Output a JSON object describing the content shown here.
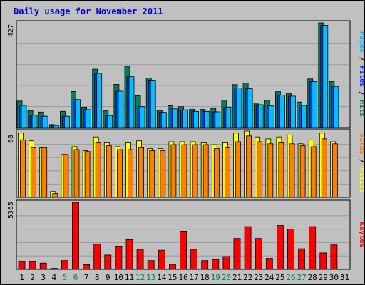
{
  "chart_data": [
    {
      "type": "bar",
      "title": "Daily usage for November 2011",
      "panel": "hits-files-pages",
      "ymax_label": "427",
      "right_label_parts": [
        {
          "text": "Pages",
          "color": "#00c0ff"
        },
        {
          "text": " / ",
          "color": "#000000"
        },
        {
          "text": "Files",
          "color": "#0040ff"
        },
        {
          "text": " / ",
          "color": "#000000"
        },
        {
          "text": "Hits",
          "color": "#00805c"
        }
      ],
      "categories": [
        "1",
        "2",
        "3",
        "4",
        "5",
        "6",
        "7",
        "8",
        "9",
        "10",
        "11",
        "12",
        "13",
        "14",
        "15",
        "16",
        "17",
        "18",
        "19",
        "20",
        "21",
        "22",
        "23",
        "24",
        "25",
        "26",
        "27",
        "28",
        "29",
        "30",
        "31"
      ],
      "weekend_days": [
        "5",
        "6",
        "12",
        "13",
        "19",
        "20",
        "26",
        "27"
      ],
      "ylim": [
        0,
        427
      ],
      "series": [
        {
          "name": "Hits",
          "color": "#00805c",
          "values": [
            108,
            69,
            63,
            12,
            66,
            147,
            83,
            238,
            68,
            176,
            250,
            130,
            202,
            69,
            89,
            85,
            74,
            74,
            78,
            111,
            175,
            181,
            100,
            111,
            146,
            138,
            104,
            198,
            427,
            188,
            0
          ]
        },
        {
          "name": "Files",
          "color": "#0040ff",
          "values": [
            90,
            50,
            46,
            8,
            46,
            114,
            73,
            221,
            49,
            148,
            207,
            85,
            193,
            62,
            76,
            72,
            66,
            66,
            64,
            83,
            161,
            158,
            93,
            88,
            132,
            128,
            90,
            187,
            417,
            168,
            0
          ]
        },
        {
          "name": "Pages",
          "color": "#00c0ff",
          "values": [
            90,
            50,
            46,
            8,
            46,
            114,
            73,
            221,
            49,
            148,
            207,
            85,
            193,
            62,
            76,
            72,
            66,
            66,
            64,
            83,
            161,
            158,
            93,
            88,
            132,
            128,
            90,
            187,
            417,
            168,
            0
          ]
        }
      ]
    },
    {
      "type": "bar",
      "panel": "visits-sites",
      "ymax_label": "68",
      "right_label_parts": [
        {
          "text": "Sites",
          "color": "#ff8000"
        },
        {
          "text": " / ",
          "color": "#000000"
        },
        {
          "text": "Visits",
          "color": "#ffff00"
        }
      ],
      "ylim": [
        0,
        68
      ],
      "series": [
        {
          "name": "Visits",
          "color": "#ffff00",
          "values": [
            66,
            58,
            51,
            6,
            44,
            52,
            48,
            62,
            56,
            52,
            56,
            58,
            50,
            50,
            57,
            57,
            57,
            56,
            54,
            56,
            66,
            68,
            62,
            60,
            62,
            64,
            55,
            59,
            66,
            57,
            0
          ]
        },
        {
          "name": "Sites",
          "color": "#ff8000",
          "values": [
            59,
            51,
            51,
            4,
            44,
            49,
            47,
            56,
            53,
            49,
            49,
            51,
            48,
            48,
            54,
            54,
            54,
            54,
            50,
            51,
            57,
            63,
            57,
            55,
            56,
            55,
            53,
            52,
            60,
            55,
            0
          ]
        }
      ]
    },
    {
      "type": "bar",
      "panel": "kbytes",
      "ymax_label": "5365",
      "right_label_parts": [
        {
          "text": "KBytes",
          "color": "#ff0000"
        }
      ],
      "ylim": [
        0,
        5365
      ],
      "series": [
        {
          "name": "KBytes",
          "color": "#ff0000",
          "values": [
            620,
            620,
            500,
            80,
            700,
            5365,
            380,
            2040,
            1150,
            1860,
            2380,
            1600,
            700,
            1530,
            400,
            3060,
            1600,
            700,
            780,
            1030,
            2470,
            3420,
            2470,
            880,
            3510,
            3220,
            1650,
            3420,
            1320,
            1960,
            0
          ]
        }
      ]
    }
  ]
}
